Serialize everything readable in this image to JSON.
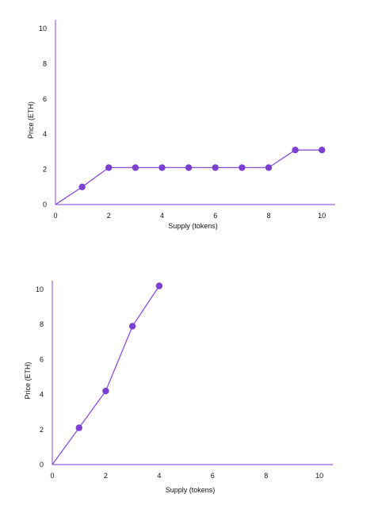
{
  "chart_data": [
    {
      "type": "line",
      "xlabel": "Supply (tokens)",
      "ylabel": "Price (ETH)",
      "xlim": [
        0,
        10.5
      ],
      "ylim": [
        0,
        10.5
      ],
      "xticks": [
        0,
        2,
        4,
        6,
        8,
        10
      ],
      "yticks": [
        0,
        2,
        4,
        6,
        8,
        10
      ],
      "grid": false,
      "series": [
        {
          "x": [
            0,
            1,
            2,
            3,
            4,
            5,
            6,
            7,
            8,
            9,
            10
          ],
          "y": [
            0,
            1.0,
            2.1,
            2.1,
            2.1,
            2.1,
            2.1,
            2.1,
            2.1,
            3.1,
            3.1
          ],
          "markers_from_index": 1
        }
      ],
      "colors": {
        "line": "#8a4fd6",
        "marker": "#7b3fd1",
        "axis": "#9a64dd"
      }
    },
    {
      "type": "line",
      "xlabel": "Supply (tokens)",
      "ylabel": "Price (ETH)",
      "xlim": [
        0,
        10.5
      ],
      "ylim": [
        0,
        10.5
      ],
      "xticks": [
        0,
        2,
        4,
        6,
        8,
        10
      ],
      "yticks": [
        0,
        2,
        4,
        6,
        8,
        10
      ],
      "grid": false,
      "series": [
        {
          "x": [
            0,
            1,
            2,
            3,
            4
          ],
          "y": [
            0,
            2.1,
            4.2,
            7.9,
            10.2
          ],
          "markers_from_index": 1
        }
      ],
      "colors": {
        "line": "#8a4fd6",
        "marker": "#7b3fd1",
        "axis": "#9a64dd"
      }
    }
  ]
}
